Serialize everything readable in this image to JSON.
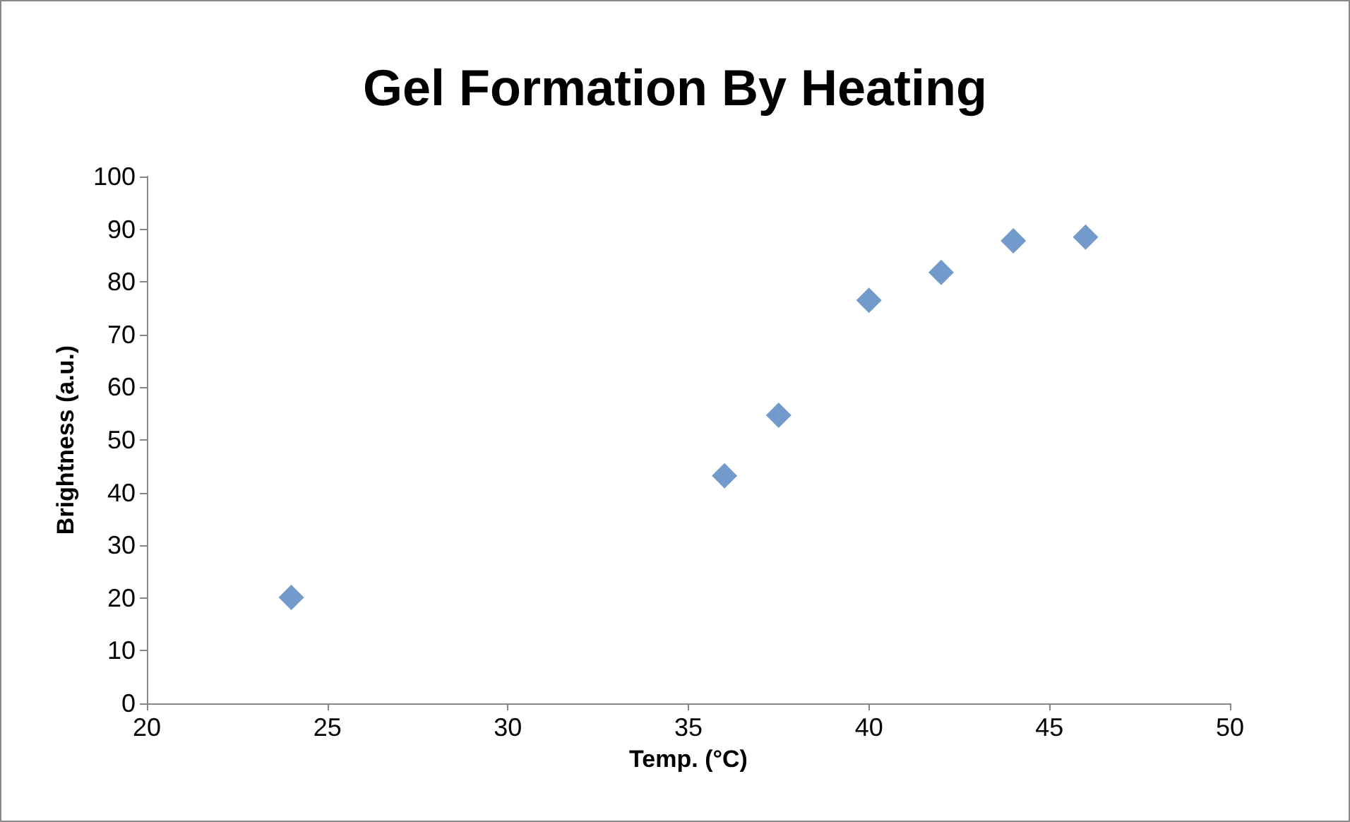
{
  "chart_data": {
    "type": "scatter",
    "title": "Gel Formation By Heating",
    "xlabel": "Temp. (°C)",
    "ylabel": "Brightness (a.u.)",
    "x": [
      24,
      36,
      37.5,
      40,
      42,
      44,
      46
    ],
    "series": [
      {
        "color": "#4f81bd",
        "values": [
          20.1,
          43.2,
          54.7,
          76.5,
          81.8,
          87.8,
          88.5
        ]
      }
    ],
    "xlim": [
      20,
      50
    ],
    "xticks": [
      20,
      25,
      30,
      35,
      40,
      45,
      50
    ],
    "ylim": [
      0,
      100
    ],
    "yticks": [
      0,
      10,
      20,
      30,
      40,
      50,
      60,
      70,
      80,
      90,
      100
    ],
    "grid": false,
    "marker": "diamond"
  }
}
